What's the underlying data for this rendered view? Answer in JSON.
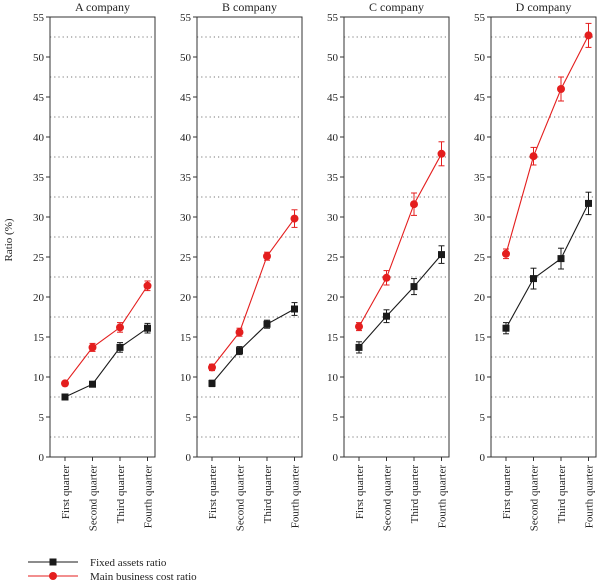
{
  "figure": {
    "ylabel": "Ratio (%)"
  },
  "legend": {
    "items": [
      {
        "label": "Fixed assets ratio",
        "color": "#1a1a1a",
        "marker": "square"
      },
      {
        "label": "Main business cost ratio",
        "color": "#e41e1e",
        "marker": "circle"
      }
    ]
  },
  "chart_data": [
    {
      "type": "line",
      "title": "A company",
      "categories": [
        "First quarter",
        "Second quarter",
        "Third quarter",
        "Fourth quarter"
      ],
      "ylabel": "Ratio (%)",
      "ylim": [
        0,
        55
      ],
      "yticks": [
        0,
        5,
        10,
        15,
        20,
        25,
        30,
        35,
        40,
        45,
        50,
        55
      ],
      "grid": "dotted horizontal",
      "series": [
        {
          "name": "Fixed assets ratio",
          "values": [
            7.5,
            9.1,
            13.7,
            16.1
          ],
          "errors": [
            0.3,
            0.3,
            0.6,
            0.6
          ]
        },
        {
          "name": "Main business cost ratio",
          "values": [
            9.2,
            13.7,
            16.2,
            21.4
          ],
          "errors": [
            0.3,
            0.5,
            0.6,
            0.6
          ]
        }
      ]
    },
    {
      "type": "line",
      "title": "B company",
      "categories": [
        "First quarter",
        "Second quarter",
        "Third quarter",
        "Fourth quarter"
      ],
      "ylim": [
        0,
        55
      ],
      "yticks": [
        0,
        5,
        10,
        15,
        20,
        25,
        30,
        35,
        40,
        45,
        50,
        55
      ],
      "grid": "dotted horizontal",
      "series": [
        {
          "name": "Fixed assets ratio",
          "values": [
            9.2,
            13.3,
            16.6,
            18.5
          ],
          "errors": [
            0.4,
            0.5,
            0.5,
            0.8
          ]
        },
        {
          "name": "Main business cost ratio",
          "values": [
            11.2,
            15.6,
            25.1,
            29.8
          ],
          "errors": [
            0.4,
            0.5,
            0.5,
            1.1
          ]
        }
      ]
    },
    {
      "type": "line",
      "title": "C company",
      "categories": [
        "First quarter",
        "Second quarter",
        "Third quarter",
        "Fourth quarter"
      ],
      "ylim": [
        0,
        55
      ],
      "yticks": [
        0,
        5,
        10,
        15,
        20,
        25,
        30,
        35,
        40,
        45,
        50,
        55
      ],
      "grid": "dotted horizontal",
      "series": [
        {
          "name": "Fixed assets ratio",
          "values": [
            13.7,
            17.6,
            21.3,
            25.3
          ],
          "errors": [
            0.7,
            0.8,
            1.0,
            1.1
          ]
        },
        {
          "name": "Main business cost ratio",
          "values": [
            16.3,
            22.4,
            31.6,
            37.9
          ],
          "errors": [
            0.5,
            0.9,
            1.4,
            1.5
          ]
        }
      ]
    },
    {
      "type": "line",
      "title": "D company",
      "categories": [
        "First quarter",
        "Second quarter",
        "Third quarter",
        "Fourth quarter"
      ],
      "ylim": [
        0,
        55
      ],
      "yticks": [
        0,
        5,
        10,
        15,
        20,
        25,
        30,
        35,
        40,
        45,
        50,
        55
      ],
      "grid": "dotted horizontal",
      "series": [
        {
          "name": "Fixed assets ratio",
          "values": [
            16.1,
            22.3,
            24.8,
            31.7
          ],
          "errors": [
            0.7,
            1.3,
            1.3,
            1.4
          ]
        },
        {
          "name": "Main business cost ratio",
          "values": [
            25.4,
            37.6,
            46.0,
            52.7
          ],
          "errors": [
            0.6,
            1.1,
            1.5,
            1.5
          ]
        }
      ]
    }
  ]
}
